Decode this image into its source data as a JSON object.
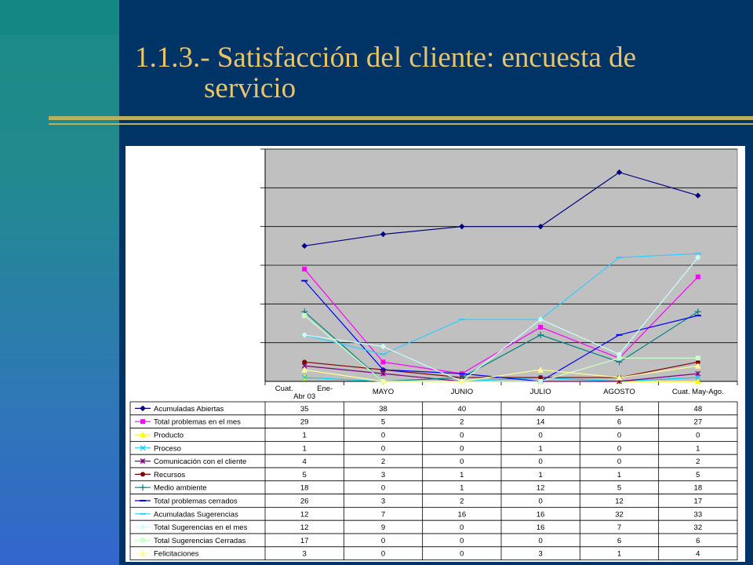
{
  "slide": {
    "title_line1": "1.1.3.- Satisfacción del cliente: encuesta de",
    "title_line2": "servicio"
  },
  "colors": {
    "background": "#003366",
    "title": "#e8c56a",
    "plot_area": "#c0c0c0"
  },
  "chart_data": {
    "type": "line",
    "title": "",
    "xlabel": "",
    "ylabel": "",
    "ylim": [
      0,
      60
    ],
    "grid": true,
    "legend": "data-table-below",
    "categories": [
      "Cuat. Ene-Abr 03",
      "MAYO",
      "JUNIO",
      "JULIO",
      "AGOSTO",
      "Cuat. May-Ago."
    ],
    "category_lines": [
      [
        "Cuat.",
        "Ene-",
        "Abr 03"
      ],
      [
        "MAYO"
      ],
      [
        "JUNIO"
      ],
      [
        "JULIO"
      ],
      [
        "AGOSTO"
      ],
      [
        "Cuat. May-Ago."
      ]
    ],
    "series": [
      {
        "name": "Acumuladas Abiertas",
        "values": [
          35,
          38,
          40,
          40,
          54,
          48
        ],
        "color": "#000080",
        "marker": "diamond"
      },
      {
        "name": "Total  problemas en el mes",
        "values": [
          29,
          5,
          2,
          14,
          6,
          27
        ],
        "color": "#ff00ff",
        "marker": "square"
      },
      {
        "name": "Producto",
        "values": [
          1,
          0,
          0,
          0,
          0,
          0
        ],
        "color": "#ffff00",
        "marker": "triangle"
      },
      {
        "name": "Proceso",
        "values": [
          1,
          0,
          0,
          1,
          0,
          1
        ],
        "color": "#00ccff",
        "marker": "x"
      },
      {
        "name": "Comunicación con el cliente",
        "values": [
          4,
          2,
          0,
          0,
          0,
          2
        ],
        "color": "#800080",
        "marker": "star"
      },
      {
        "name": "Recursos",
        "values": [
          5,
          3,
          1,
          1,
          1,
          5
        ],
        "color": "#800000",
        "marker": "circle"
      },
      {
        "name": "Medio ambiente",
        "values": [
          18,
          0,
          1,
          12,
          5,
          18
        ],
        "color": "#008080",
        "marker": "plus"
      },
      {
        "name": "Total problemas cerrados",
        "values": [
          26,
          3,
          2,
          0,
          12,
          17
        ],
        "color": "#0000ff",
        "marker": "dash"
      },
      {
        "name": "Acumuladas Sugerencias",
        "values": [
          12,
          7,
          16,
          16,
          32,
          33
        ],
        "color": "#33ccff",
        "marker": "dash"
      },
      {
        "name": "Total Sugerencias en el mes",
        "values": [
          12,
          9,
          0,
          16,
          7,
          32
        ],
        "color": "#ccffff",
        "marker": "diamond"
      },
      {
        "name": "Total Sugerencias Cerradas",
        "values": [
          17,
          0,
          0,
          0,
          6,
          6
        ],
        "color": "#ccffcc",
        "marker": "square"
      },
      {
        "name": "Felicitaciones",
        "values": [
          3,
          0,
          0,
          3,
          1,
          4
        ],
        "color": "#ffff99",
        "marker": "triangle"
      }
    ]
  }
}
